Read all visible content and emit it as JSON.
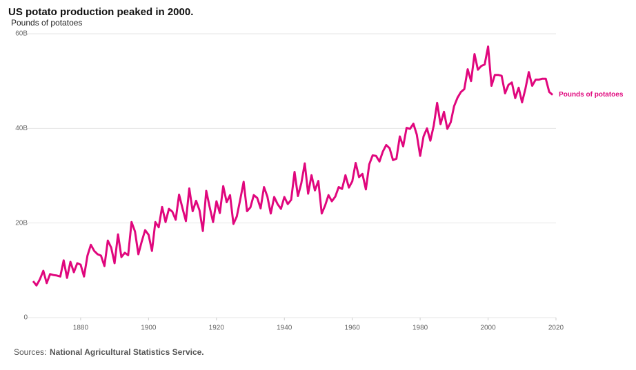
{
  "chart_data": {
    "type": "line",
    "title": "US potato production peaked in 2000.",
    "y_label": "Pounds of potatoes",
    "source_label": "Sources:",
    "source": "National Agricultural Statistics Service.",
    "x": [
      1866,
      1867,
      1868,
      1869,
      1870,
      1871,
      1872,
      1873,
      1874,
      1875,
      1876,
      1877,
      1878,
      1879,
      1880,
      1881,
      1882,
      1883,
      1884,
      1885,
      1886,
      1887,
      1888,
      1889,
      1890,
      1891,
      1892,
      1893,
      1894,
      1895,
      1896,
      1897,
      1898,
      1899,
      1900,
      1901,
      1902,
      1903,
      1904,
      1905,
      1906,
      1907,
      1908,
      1909,
      1910,
      1911,
      1912,
      1913,
      1914,
      1915,
      1916,
      1917,
      1918,
      1919,
      1920,
      1921,
      1922,
      1923,
      1924,
      1925,
      1926,
      1927,
      1928,
      1929,
      1930,
      1931,
      1932,
      1933,
      1934,
      1935,
      1936,
      1937,
      1938,
      1939,
      1940,
      1941,
      1942,
      1943,
      1944,
      1945,
      1946,
      1947,
      1948,
      1949,
      1950,
      1951,
      1952,
      1953,
      1954,
      1955,
      1956,
      1957,
      1958,
      1959,
      1960,
      1961,
      1962,
      1963,
      1964,
      1965,
      1966,
      1967,
      1968,
      1969,
      1970,
      1971,
      1972,
      1973,
      1974,
      1975,
      1976,
      1977,
      1978,
      1979,
      1980,
      1981,
      1982,
      1983,
      1984,
      1985,
      1986,
      1987,
      1988,
      1989,
      1990,
      1991,
      1992,
      1993,
      1994,
      1995,
      1996,
      1997,
      1998,
      1999,
      2000,
      2001,
      2002,
      2003,
      2004,
      2005,
      2006,
      2007,
      2008,
      2009,
      2010,
      2011,
      2012,
      2013,
      2014,
      2015,
      2016,
      2017,
      2018,
      2019
    ],
    "series": [
      {
        "name": "Pounds of potatoes",
        "color": "#e0077d",
        "values": [
          7700000000.0,
          6800000000.0,
          8100000000.0,
          9900000000.0,
          7300000000.0,
          9200000000.0,
          9000000000.0,
          8900000000.0,
          8700000000.0,
          12100000000.0,
          8400000000.0,
          11800000000.0,
          9600000000.0,
          11500000000.0,
          11200000000.0,
          8700000000.0,
          13100000000.0,
          15400000000.0,
          14100000000.0,
          13400000000.0,
          13100000000.0,
          10900000000.0,
          16300000000.0,
          14800000000.0,
          11500000000.0,
          17600000000.0,
          12800000000.0,
          13700000000.0,
          13200000000.0,
          20200000000.0,
          18200000000.0,
          13400000000.0,
          16100000000.0,
          18500000000.0,
          17500000000.0,
          14100000000.0,
          20200000000.0,
          19100000000.0,
          23400000000.0,
          20200000000.0,
          23000000000.0,
          22400000000.0,
          20700000000.0,
          26000000000.0,
          23100000000.0,
          20400000000.0,
          27300000000.0,
          22500000000.0,
          24700000000.0,
          22700000000.0,
          18300000000.0,
          26800000000.0,
          23400000000.0,
          20200000000.0,
          24600000000.0,
          22100000000.0,
          27800000000.0,
          24400000000.0,
          25900000000.0,
          19800000000.0,
          21400000000.0,
          24900000000.0,
          28700000000.0,
          22500000000.0,
          23300000000.0,
          25900000000.0,
          25300000000.0,
          23100000000.0,
          27600000000.0,
          25600000000.0,
          22000000000.0,
          25500000000.0,
          24000000000.0,
          23000000000.0,
          25500000000.0,
          24000000000.0,
          24900000000.0,
          30800000000.0,
          25700000000.0,
          28400000000.0,
          32600000000.0,
          26200000000.0,
          30100000000.0,
          26900000000.0,
          28900000000.0,
          22000000000.0,
          23700000000.0,
          25900000000.0,
          24600000000.0,
          25600000000.0,
          27600000000.0,
          27200000000.0,
          30100000000.0,
          27500000000.0,
          28800000000.0,
          32700000000.0,
          29700000000.0,
          30400000000.0,
          27100000000.0,
          32400000000.0,
          34300000000.0,
          34200000000.0,
          33000000000.0,
          35100000000.0,
          36500000000.0,
          35800000000.0,
          33300000000.0,
          33600000000.0,
          38300000000.0,
          36200000000.0,
          40100000000.0,
          39900000000.0,
          41000000000.0,
          38700000000.0,
          34200000000.0,
          38300000000.0,
          40000000000.0,
          37400000000.0,
          40600000000.0,
          45400000000.0,
          40900000000.0,
          43500000000.0,
          39900000000.0,
          41300000000.0,
          44700000000.0,
          46500000000.0,
          47700000000.0,
          48300000000.0,
          52500000000.0,
          50000000000.0,
          55700000000.0,
          52400000000.0,
          53200000000.0,
          53500000000.0,
          57300000000.0,
          49000000000.0,
          51300000000.0,
          51300000000.0,
          51100000000.0,
          47400000000.0,
          49200000000.0,
          49700000000.0,
          46400000000.0,
          48600000000.0,
          45500000000.0,
          48400000000.0,
          51900000000.0,
          49000000000.0,
          50300000000.0,
          50300000000.0,
          50500000000.0,
          50500000000.0,
          47700000000.0,
          47100000000.0
        ]
      }
    ],
    "xlim": [
      1866,
      2020
    ],
    "xticks": [
      1880,
      1900,
      1920,
      1940,
      1960,
      1980,
      2000,
      2020
    ],
    "ylim": [
      0,
      60000000000
    ],
    "yticks": [
      0,
      {
        "value": 20000000000,
        "label": "20B"
      },
      {
        "value": 40000000000,
        "label": "40B"
      },
      {
        "value": 60000000000,
        "label": "60B"
      }
    ],
    "grid": true
  }
}
